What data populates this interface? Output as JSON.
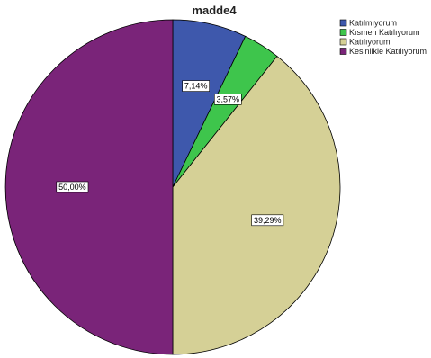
{
  "chart_data": {
    "type": "pie",
    "title": "madde4",
    "categories": [
      "Katılmıyorum",
      "Kısmen Katılıyorum",
      "Katılıyorum",
      "Kesinlikle Katılıyorum"
    ],
    "values": [
      7.14,
      3.57,
      39.29,
      50.0
    ],
    "labels": [
      "7,14%",
      "3,57%",
      "39,29%",
      "50,00%"
    ],
    "colors": [
      "#3e58ac",
      "#3ec54c",
      "#d5d096",
      "#7a2479"
    ],
    "start_angle": "12 o'clock",
    "direction": "clockwise",
    "legend_position": "top-right"
  }
}
